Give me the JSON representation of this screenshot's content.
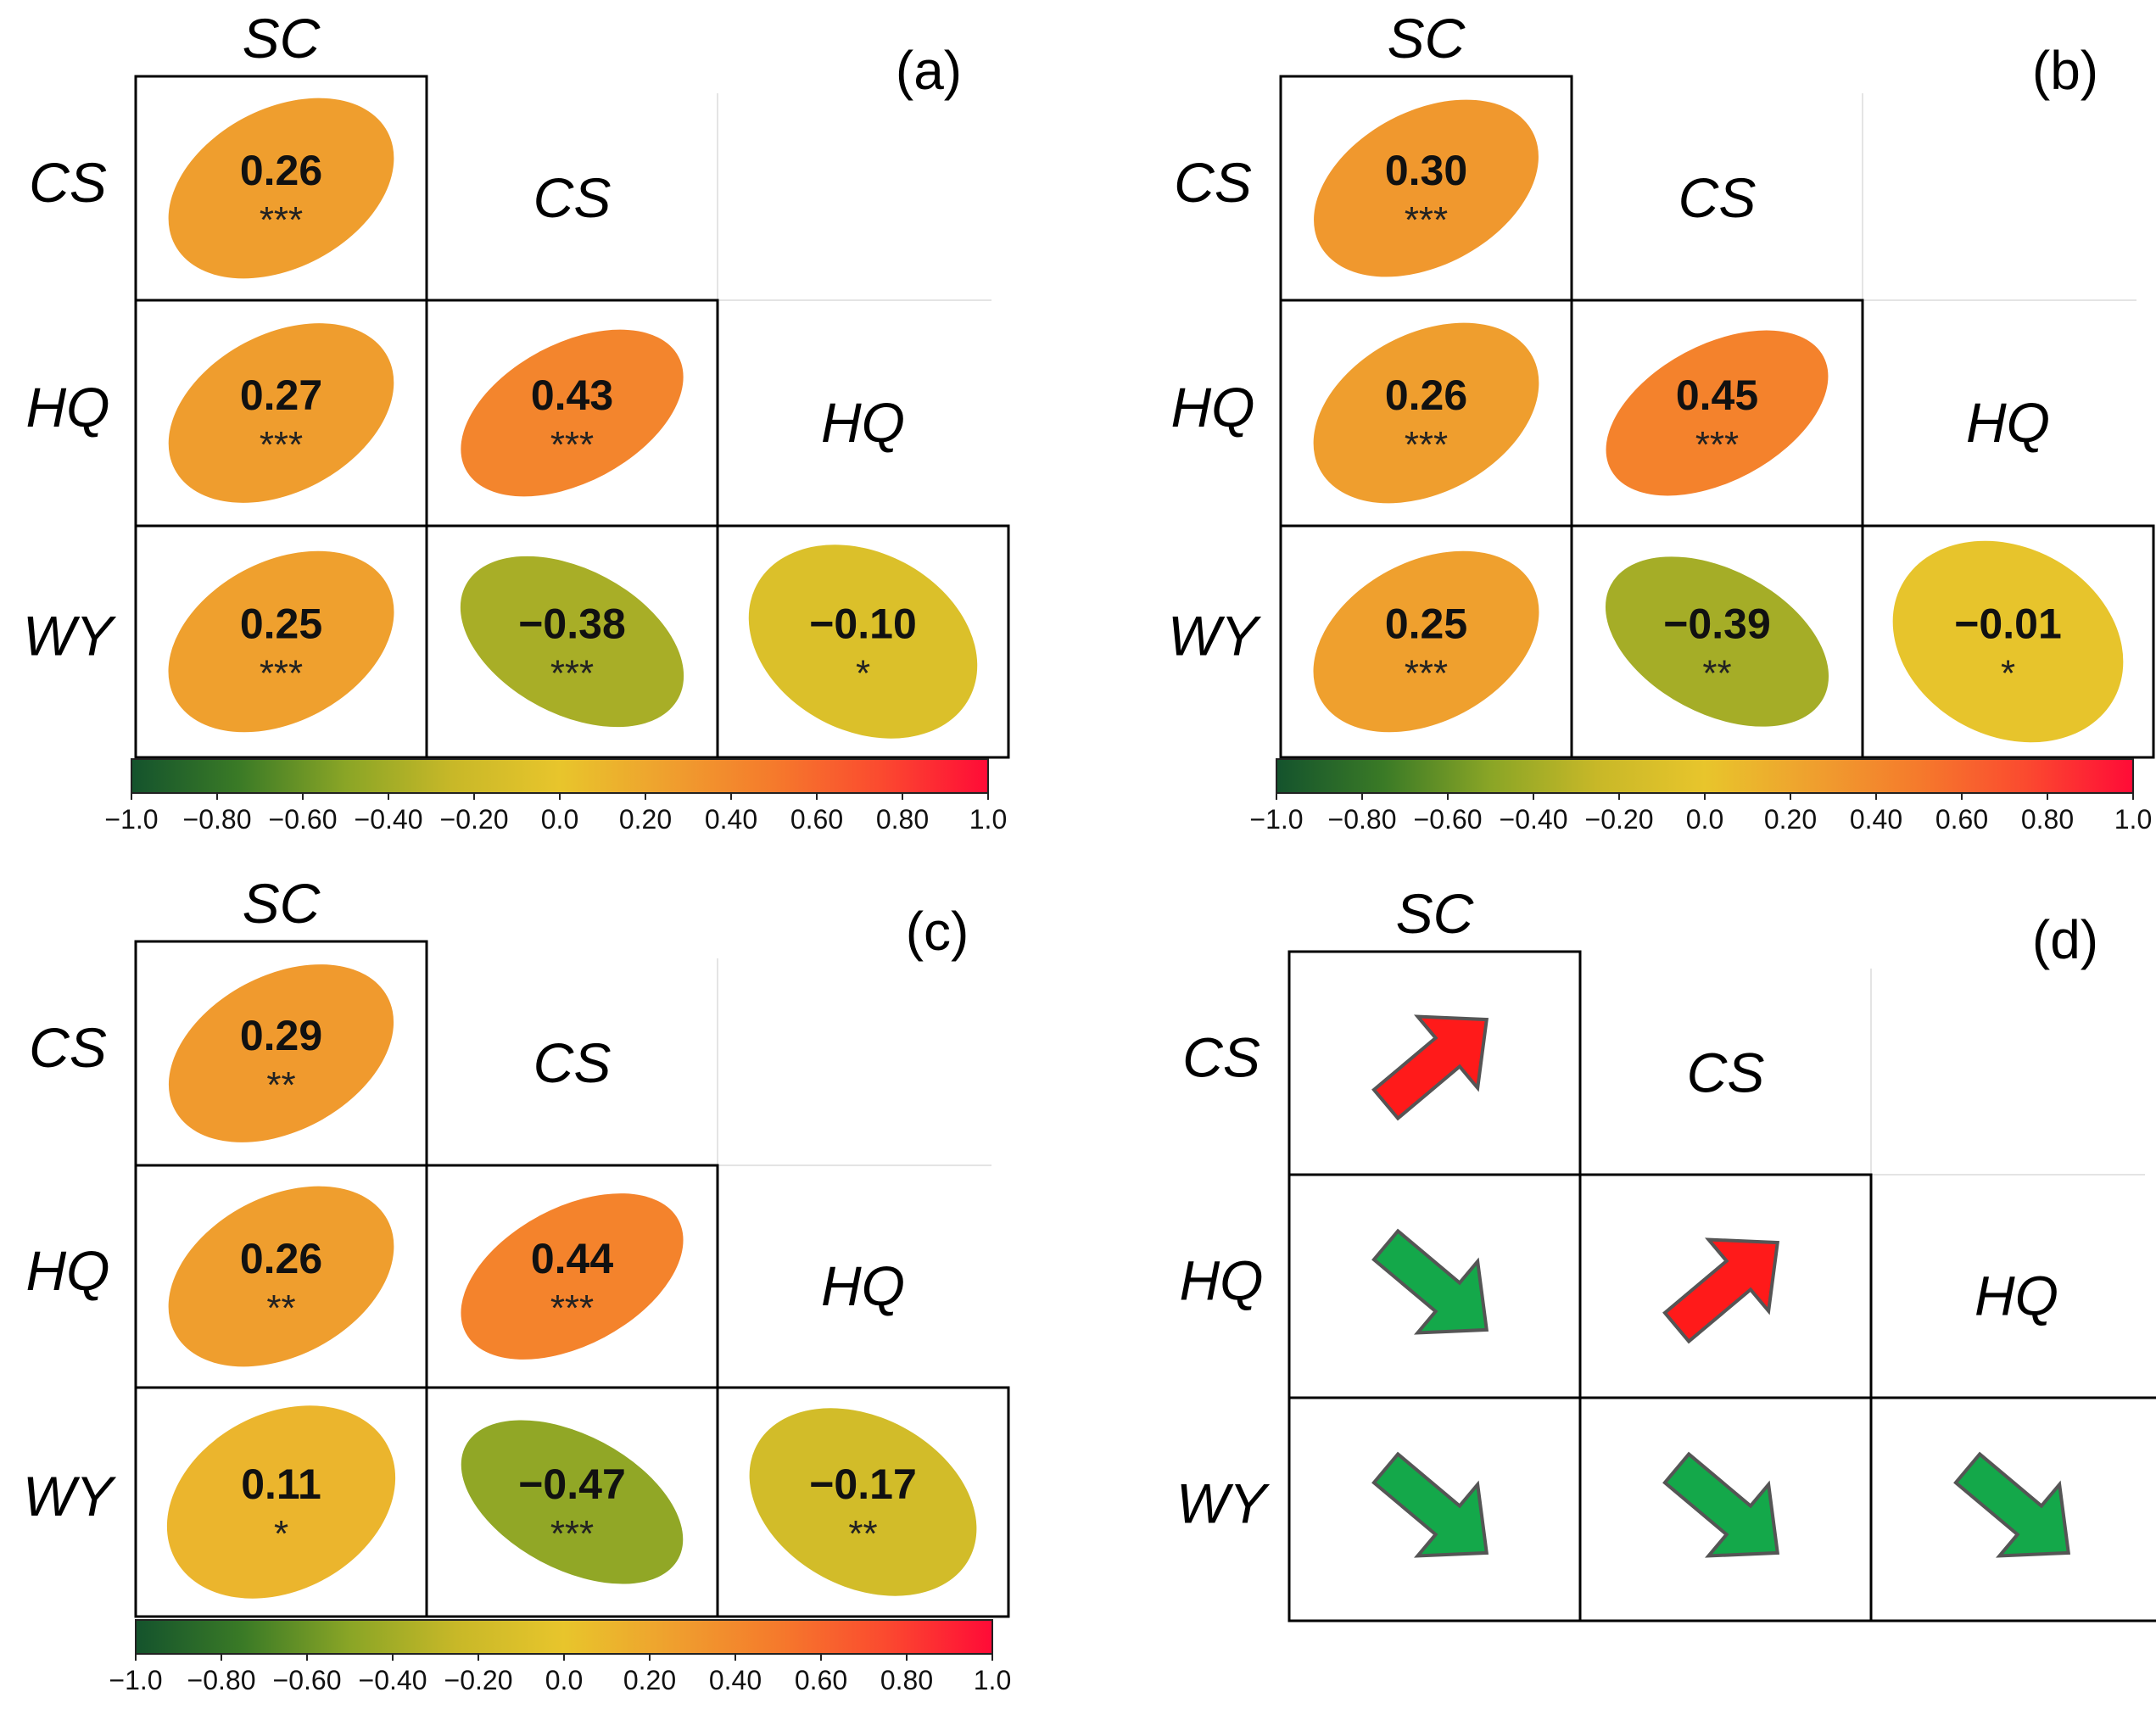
{
  "figure": {
    "variables": [
      "SC",
      "CS",
      "HQ",
      "WY"
    ],
    "colors": {
      "cbar_stops": [
        "#14532d",
        "#3a7a26",
        "#8aa526",
        "#c8b828",
        "#e8c52c",
        "#efa02e",
        "#f57a2c",
        "#fb4a2f",
        "#ff0b37"
      ],
      "arrow_up": "#ff1a1a",
      "arrow_down": "#14a84a",
      "arrow_stroke": "#555555"
    }
  },
  "chart_data": [
    {
      "type": "heatmap",
      "panel": "(a)",
      "rows": [
        "CS",
        "HQ",
        "WY"
      ],
      "cols": [
        "SC",
        "CS",
        "HQ"
      ],
      "cells": [
        {
          "row": "CS",
          "col": "SC",
          "value": 0.26,
          "label": "0.26",
          "stars": "***"
        },
        {
          "row": "HQ",
          "col": "SC",
          "value": 0.27,
          "label": "0.27",
          "stars": "***"
        },
        {
          "row": "HQ",
          "col": "CS",
          "value": 0.43,
          "label": "0.43",
          "stars": "***"
        },
        {
          "row": "WY",
          "col": "SC",
          "value": 0.25,
          "label": "0.25",
          "stars": "***"
        },
        {
          "row": "WY",
          "col": "CS",
          "value": -0.38,
          "label": "−0.38",
          "stars": "***"
        },
        {
          "row": "WY",
          "col": "HQ",
          "value": -0.1,
          "label": "−0.10",
          "stars": "*"
        }
      ],
      "colorbar": {
        "range": [
          -1.0,
          1.0
        ],
        "ticks": [
          "−1.0",
          "−0.80",
          "−0.60",
          "−0.40",
          "−0.20",
          "0.0",
          "0.20",
          "0.40",
          "0.60",
          "0.80",
          "1.0"
        ]
      }
    },
    {
      "type": "heatmap",
      "panel": "(b)",
      "rows": [
        "CS",
        "HQ",
        "WY"
      ],
      "cols": [
        "SC",
        "CS",
        "HQ"
      ],
      "cells": [
        {
          "row": "CS",
          "col": "SC",
          "value": 0.3,
          "label": "0.30",
          "stars": "***"
        },
        {
          "row": "HQ",
          "col": "SC",
          "value": 0.26,
          "label": "0.26",
          "stars": "***"
        },
        {
          "row": "HQ",
          "col": "CS",
          "value": 0.45,
          "label": "0.45",
          "stars": "***"
        },
        {
          "row": "WY",
          "col": "SC",
          "value": 0.25,
          "label": "0.25",
          "stars": "***"
        },
        {
          "row": "WY",
          "col": "CS",
          "value": -0.39,
          "label": "−0.39",
          "stars": "**"
        },
        {
          "row": "WY",
          "col": "HQ",
          "value": -0.01,
          "label": "−0.01",
          "stars": "*"
        }
      ],
      "colorbar": {
        "range": [
          -1.0,
          1.0
        ],
        "ticks": [
          "−1.0",
          "−0.80",
          "−0.60",
          "−0.40",
          "−0.20",
          "0.0",
          "0.20",
          "0.40",
          "0.60",
          "0.80",
          "1.0"
        ]
      }
    },
    {
      "type": "heatmap",
      "panel": "(c)",
      "rows": [
        "CS",
        "HQ",
        "WY"
      ],
      "cols": [
        "SC",
        "CS",
        "HQ"
      ],
      "cells": [
        {
          "row": "CS",
          "col": "SC",
          "value": 0.29,
          "label": "0.29",
          "stars": "**"
        },
        {
          "row": "HQ",
          "col": "SC",
          "value": 0.26,
          "label": "0.26",
          "stars": "**"
        },
        {
          "row": "HQ",
          "col": "CS",
          "value": 0.44,
          "label": "0.44",
          "stars": "***"
        },
        {
          "row": "WY",
          "col": "SC",
          "value": 0.11,
          "label": "0.11",
          "stars": "*"
        },
        {
          "row": "WY",
          "col": "CS",
          "value": -0.47,
          "label": "−0.47",
          "stars": "***"
        },
        {
          "row": "WY",
          "col": "HQ",
          "value": -0.17,
          "label": "−0.17",
          "stars": "**"
        }
      ],
      "colorbar": {
        "range": [
          -1.0,
          1.0
        ],
        "ticks": [
          "−1.0",
          "−0.80",
          "−0.60",
          "−0.40",
          "−0.20",
          "0.0",
          "0.20",
          "0.40",
          "0.60",
          "0.80",
          "1.0"
        ]
      }
    },
    {
      "type": "table",
      "panel": "(d)",
      "rows": [
        "CS",
        "HQ",
        "WY"
      ],
      "cols": [
        "SC",
        "CS",
        "HQ"
      ],
      "cells": [
        {
          "row": "CS",
          "col": "SC",
          "trend": "up"
        },
        {
          "row": "HQ",
          "col": "SC",
          "trend": "down"
        },
        {
          "row": "HQ",
          "col": "CS",
          "trend": "up"
        },
        {
          "row": "WY",
          "col": "SC",
          "trend": "down"
        },
        {
          "row": "WY",
          "col": "CS",
          "trend": "down"
        },
        {
          "row": "WY",
          "col": "HQ",
          "trend": "down"
        }
      ]
    }
  ]
}
